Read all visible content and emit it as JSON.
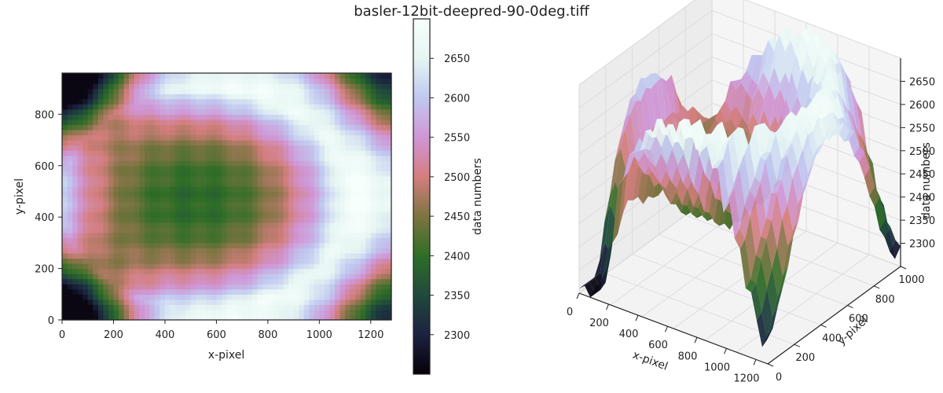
{
  "title": "basler-12bit-deepred-90-0deg.tiff",
  "colors": {
    "colormap": [
      "#060007",
      "#1c2240",
      "#1f4a3c",
      "#2f6e27",
      "#7d7442",
      "#d47e7e",
      "#d096d6",
      "#c0c8f0",
      "#e6f5f3",
      "#f7fffc"
    ],
    "axis": "#222222",
    "pane_grid": "#d8d8d8",
    "pane_fill": "#f3f3f3"
  },
  "chart_data": [
    {
      "type": "heatmap",
      "xlabel": "x-pixel",
      "ylabel": "y-pixel",
      "xlim": [
        0,
        1280
      ],
      "ylim": [
        0,
        960
      ],
      "xticks": [
        "0",
        "200",
        "400",
        "600",
        "800",
        "1000",
        "1200"
      ],
      "yticks": [
        "0",
        "200",
        "400",
        "600",
        "800"
      ],
      "colorbar": {
        "label": "data numbers",
        "range": [
          2250,
          2700
        ],
        "ticks": [
          "2300",
          "2350",
          "2400",
          "2450",
          "2500",
          "2550",
          "2600",
          "2650"
        ]
      },
      "field": {
        "center_xy": [
          560,
          470
        ],
        "center_value": 2400,
        "ring_peak_value": 2680,
        "corner_value": 2260
      }
    },
    {
      "type": "surface",
      "xlabel": "x-pixel",
      "ylabel": "y-pixel",
      "zlabel": "data numbers",
      "xticks": [
        "0",
        "200",
        "400",
        "600",
        "800",
        "1000",
        "1200"
      ],
      "yticks": [
        "0",
        "200",
        "400",
        "600",
        "800",
        "1000"
      ],
      "zticks": [
        "2300",
        "2350",
        "2400",
        "2450",
        "2500",
        "2550",
        "2600",
        "2650"
      ],
      "zlim": [
        2250,
        2700
      ]
    }
  ]
}
